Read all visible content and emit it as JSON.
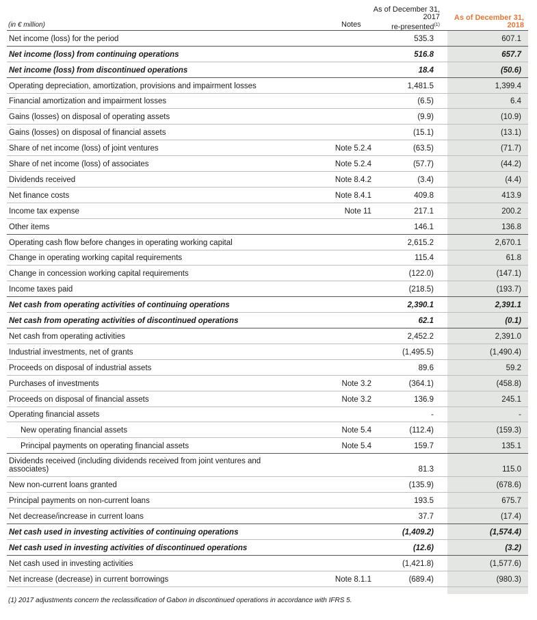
{
  "header": {
    "unit": "(in € million)",
    "notes": "Notes",
    "col1_line1": "As of December 31,",
    "col1_line2": "2017",
    "col1_line3": "re-presented",
    "col1_sup": "(1)",
    "col2_line1": "As of December 31,",
    "col2_line2": "2018"
  },
  "rows": [
    {
      "label": "Net income (loss) for the period",
      "note": "",
      "v2017": "535.3",
      "v2018": "607.1",
      "style": "plain"
    },
    {
      "label": "Net income (loss) from continuing operations",
      "note": "",
      "v2017": "516.8",
      "v2018": "657.7",
      "style": "bi"
    },
    {
      "label": "Net income (loss) from discontinued operations",
      "note": "",
      "v2017": "18.4",
      "v2018": "(50.6)",
      "style": "bi"
    },
    {
      "label": "Operating depreciation, amortization, provisions and impairment losses",
      "note": "",
      "v2017": "1,481.5",
      "v2018": "1,399.4",
      "style": "plain"
    },
    {
      "label": "Financial amortization and impairment losses",
      "note": "",
      "v2017": "(6.5)",
      "v2018": "6.4",
      "style": "plain"
    },
    {
      "label": "Gains (losses) on disposal of operating assets",
      "note": "",
      "v2017": "(9.9)",
      "v2018": "(10.9)",
      "style": "plain"
    },
    {
      "label": "Gains (losses) on disposal of financial assets",
      "note": "",
      "v2017": "(15.1)",
      "v2018": "(13.1)",
      "style": "plain"
    },
    {
      "label": "Share of net income (loss) of joint ventures",
      "note": "Note 5.2.4",
      "v2017": "(63.5)",
      "v2018": "(71.7)",
      "style": "plain"
    },
    {
      "label": "Share of net income (loss) of associates",
      "note": "Note 5.2.4",
      "v2017": "(57.7)",
      "v2018": "(44.2)",
      "style": "plain"
    },
    {
      "label": "Dividends received",
      "note": "Note 8.4.2",
      "v2017": "(3.4)",
      "v2018": "(4.4)",
      "style": "plain"
    },
    {
      "label": "Net finance costs",
      "note": "Note 8.4.1",
      "v2017": "409.8",
      "v2018": "413.9",
      "style": "plain"
    },
    {
      "label": "Income tax expense",
      "note": "Note 11",
      "v2017": "217.1",
      "v2018": "200.2",
      "style": "plain"
    },
    {
      "label": "Other items",
      "note": "",
      "v2017": "146.1",
      "v2018": "136.8",
      "style": "plain"
    },
    {
      "label": "Operating cash flow before changes in operating working capital",
      "note": "",
      "v2017": "2,615.2",
      "v2018": "2,670.1",
      "style": "plain"
    },
    {
      "label": "Change in operating working capital requirements",
      "note": "",
      "v2017": "115.4",
      "v2018": "61.8",
      "style": "plain"
    },
    {
      "label": "Change in concession working capital requirements",
      "note": "",
      "v2017": "(122.0)",
      "v2018": "(147.1)",
      "style": "plain"
    },
    {
      "label": "Income taxes paid",
      "note": "",
      "v2017": "(218.5)",
      "v2018": "(193.7)",
      "style": "plain"
    },
    {
      "label": "Net cash from operating activities of continuing operations",
      "note": "",
      "v2017": "2,390.1",
      "v2018": "2,391.1",
      "style": "bi"
    },
    {
      "label": "Net cash from operating activities of discontinued operations",
      "note": "",
      "v2017": "62.1",
      "v2018": "(0.1)",
      "style": "bi"
    },
    {
      "label": "Net cash from operating activities",
      "note": "",
      "v2017": "2,452.2",
      "v2018": "2,391.0",
      "style": "plain"
    },
    {
      "label": "Industrial investments, net of grants",
      "note": "",
      "v2017": "(1,495.5)",
      "v2018": "(1,490.4)",
      "style": "plain"
    },
    {
      "label": "Proceeds on disposal of industrial assets",
      "note": "",
      "v2017": "89.6",
      "v2018": "59.2",
      "style": "plain"
    },
    {
      "label": "Purchases of investments",
      "note": "Note 3.2",
      "v2017": "(364.1)",
      "v2018": "(458.8)",
      "style": "plain"
    },
    {
      "label": "Proceeds on disposal of financial assets",
      "note": "Note 3.2",
      "v2017": "136.9",
      "v2018": "245.1",
      "style": "plain"
    },
    {
      "label": "Operating financial assets",
      "note": "",
      "v2017": "-",
      "v2018": "-",
      "style": "plain"
    },
    {
      "label": "New operating financial assets",
      "note": "Note 5.4",
      "v2017": "(112.4)",
      "v2018": "(159.3)",
      "style": "indent"
    },
    {
      "label": "Principal payments on operating financial assets",
      "note": "Note 5.4",
      "v2017": "159.7",
      "v2018": "135.1",
      "style": "indent"
    },
    {
      "label": "Dividends received (including dividends received from joint ventures and associates)",
      "note": "",
      "v2017": "81.3",
      "v2018": "115.0",
      "style": "two"
    },
    {
      "label": "New non-current loans granted",
      "note": "",
      "v2017": "(135.9)",
      "v2018": "(678.6)",
      "style": "plain"
    },
    {
      "label": "Principal payments on non-current loans",
      "note": "",
      "v2017": "193.5",
      "v2018": "675.7",
      "style": "plain"
    },
    {
      "label": "Net decrease/increase in current loans",
      "note": "",
      "v2017": "37.7",
      "v2018": "(17.4)",
      "style": "plain"
    },
    {
      "label": "Net cash used in investing activities of continuing operations",
      "note": "",
      "v2017": "(1,409.2)",
      "v2018": "(1,574.4)",
      "style": "bi"
    },
    {
      "label": "Net cash used in investing activities of discontinued operations",
      "note": "",
      "v2017": "(12.6)",
      "v2018": "(3.2)",
      "style": "bi"
    },
    {
      "label": "Net cash used in investing activities",
      "note": "",
      "v2017": "(1,421.8)",
      "v2018": "(1,577.6)",
      "style": "plain"
    },
    {
      "label": "Net increase (decrease) in current borrowings",
      "note": "Note 8.1.1",
      "v2017": "(689.4)",
      "v2018": "(980.3)",
      "style": "plain"
    }
  ],
  "footnote": "(1) 2017 adjustments concern the reclassification of Gabon in discontinued operations in accordance with IFRS 5."
}
